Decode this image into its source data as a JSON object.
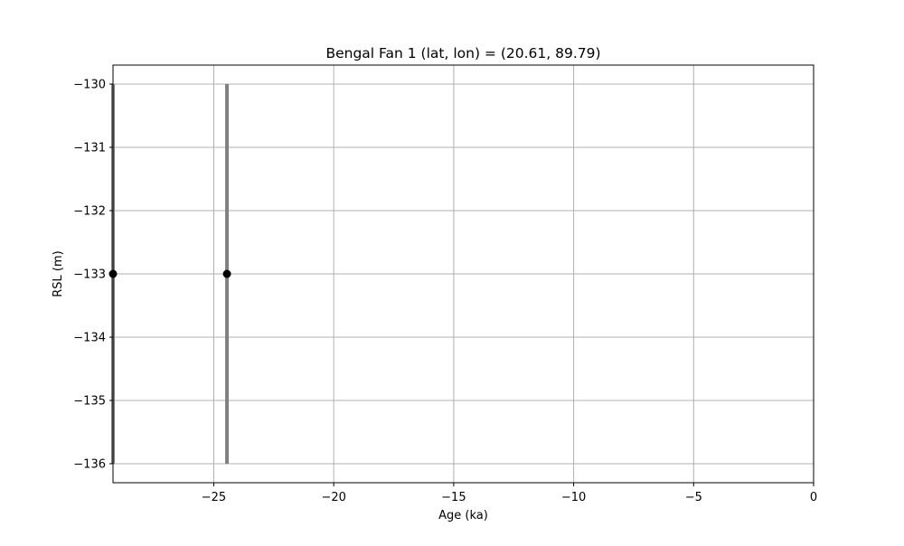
{
  "chart_data": {
    "type": "scatter",
    "title": "Bengal Fan 1 (lat, lon) = (20.61, 89.79)",
    "xlabel": "Age (ka)",
    "ylabel": "RSL (m)",
    "xlim": [
      -29.2,
      0
    ],
    "ylim": [
      -136.3,
      -129.7
    ],
    "xticks": [
      -25,
      -20,
      -15,
      -10,
      -5,
      0
    ],
    "yticks": [
      -130,
      -131,
      -132,
      -133,
      -134,
      -135,
      -136
    ],
    "xtick_labels": [
      "−25",
      "−20",
      "−15",
      "−10",
      "−5",
      "0"
    ],
    "ytick_labels": [
      "−130",
      "−131",
      "−132",
      "−133",
      "−134",
      "−135",
      "−136"
    ],
    "grid": true,
    "legend": "none",
    "points": [
      {
        "x": -29.2,
        "y": -133,
        "y_low": -136,
        "y_high": -130
      },
      {
        "x": -24.45,
        "y": -133,
        "y_low": -136,
        "y_high": -130
      }
    ],
    "colors": {
      "marker": "#000000",
      "errorbar": "#808080",
      "grid": "#b0b0b0",
      "axes": "#000000"
    }
  }
}
